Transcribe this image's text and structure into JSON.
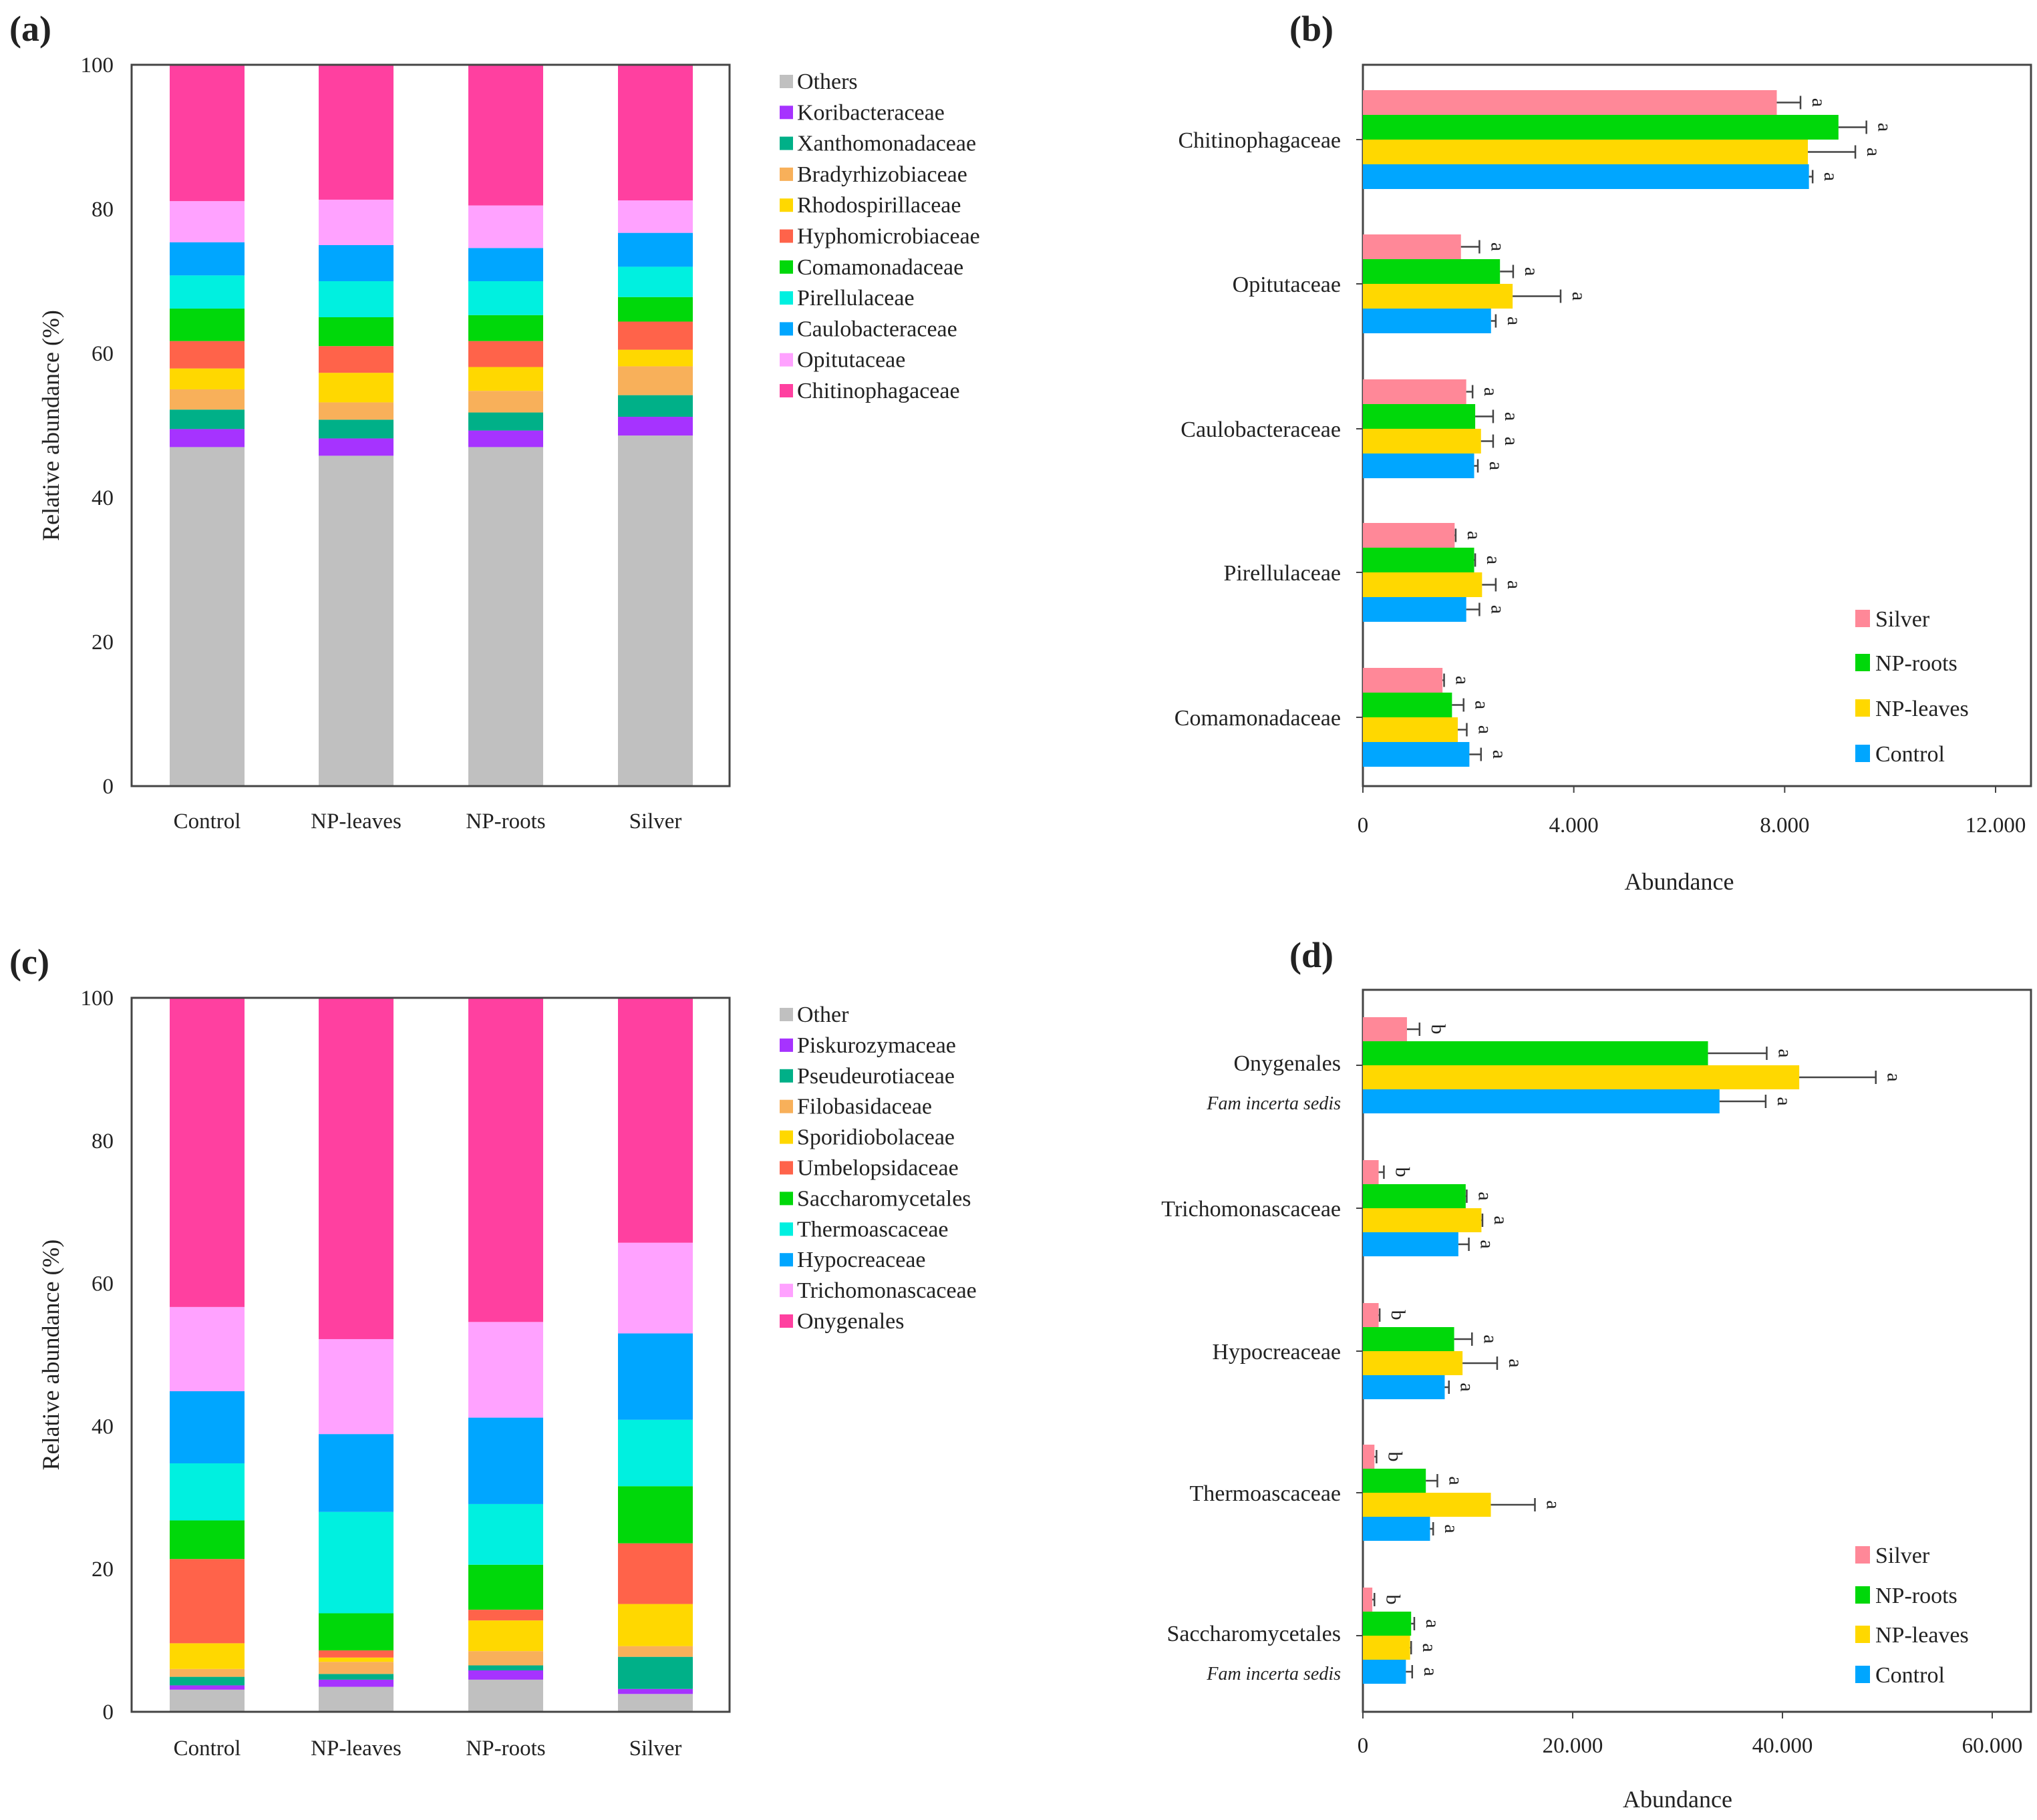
{
  "chart_data": [
    {
      "panel": "(a)",
      "type": "bar",
      "stacked": true,
      "categories": [
        "Control",
        "NP-leaves",
        "NP-roots",
        "Silver"
      ],
      "ylabel": "Relative abundance (%)",
      "ylim": [
        0,
        100
      ],
      "yticks": [
        "0",
        "20",
        "40",
        "60",
        "80",
        "100"
      ],
      "legend_position": "right",
      "series": [
        {
          "name": "Others",
          "color": "#c0c0c0",
          "values": [
            47.0,
            45.8,
            47.0,
            48.6
          ]
        },
        {
          "name": "Koribacteraceae",
          "color": "#a633ff",
          "values": [
            2.5,
            2.4,
            2.3,
            2.6
          ]
        },
        {
          "name": "Xanthomonadaceae",
          "color": "#00b088",
          "values": [
            2.7,
            2.6,
            2.5,
            3.0
          ]
        },
        {
          "name": "Bradyrhizobiaceae",
          "color": "#f8b05a",
          "values": [
            2.8,
            2.4,
            3.0,
            4.0
          ]
        },
        {
          "name": "Rhodospirillaceae",
          "color": "#ffd800",
          "values": [
            2.9,
            4.1,
            3.3,
            2.3
          ]
        },
        {
          "name": "Hyphomicrobiaceae",
          "color": "#ff634a",
          "values": [
            3.8,
            3.7,
            3.6,
            3.9
          ]
        },
        {
          "name": "Comamonadaceae",
          "color": "#00d80a",
          "values": [
            4.5,
            4.0,
            3.6,
            3.4
          ]
        },
        {
          "name": "Pirellulaceae",
          "color": "#00f0e0",
          "values": [
            4.6,
            5.0,
            4.7,
            4.2
          ]
        },
        {
          "name": "Caulobacteraceae",
          "color": "#00a6ff",
          "values": [
            4.6,
            5.0,
            4.6,
            4.7
          ]
        },
        {
          "name": "Opitutaceae",
          "color": "#ffa2ff",
          "values": [
            5.7,
            6.3,
            5.9,
            4.5
          ]
        },
        {
          "name": "Chitinophagaceae",
          "color": "#ff40a0",
          "values": [
            18.9,
            18.7,
            19.5,
            18.8
          ]
        }
      ]
    },
    {
      "panel": "(b)",
      "type": "bar",
      "orientation": "horizontal",
      "categories": [
        {
          "label": "Chitinophagaceae"
        },
        {
          "label": "Opitutaceae"
        },
        {
          "label": "Caulobacteraceae"
        },
        {
          "label": "Pirellulaceae"
        },
        {
          "label": "Comamonadaceae"
        }
      ],
      "xlabel": "Abundance",
      "xlim": [
        0,
        12000
      ],
      "xticks": [
        {
          "value": 0,
          "label": "0"
        },
        {
          "value": 4000,
          "label": "4.000"
        },
        {
          "value": 8000,
          "label": "8.000"
        },
        {
          "value": 12000,
          "label": "12.000"
        }
      ],
      "legend_position": "bottom-right",
      "series": [
        {
          "name": "Silver",
          "color": "#ff8898",
          "values": [
            7850,
            1860,
            1960,
            1740,
            1510
          ],
          "errors": [
            450,
            350,
            120,
            20,
            30
          ],
          "letters": [
            "a",
            "a",
            "a",
            "a",
            "a"
          ]
        },
        {
          "name": "NP-roots",
          "color": "#00d80a",
          "values": [
            9020,
            2600,
            2130,
            2110,
            1690
          ],
          "errors": [
            530,
            250,
            340,
            20,
            220
          ],
          "letters": [
            "a",
            "a",
            "a",
            "a",
            "a"
          ]
        },
        {
          "name": "NP-leaves",
          "color": "#ffd800",
          "values": [
            8440,
            2840,
            2240,
            2260,
            1800
          ],
          "errors": [
            900,
            910,
            230,
            260,
            170
          ],
          "letters": [
            "a",
            "a",
            "a",
            "a",
            "a"
          ]
        },
        {
          "name": "Control",
          "color": "#00a6ff",
          "values": [
            8460,
            2430,
            2110,
            1960,
            2020
          ],
          "errors": [
            70,
            90,
            70,
            250,
            220
          ],
          "letters": [
            "a",
            "a",
            "a",
            "a",
            "a"
          ]
        }
      ]
    },
    {
      "panel": "(c)",
      "type": "bar",
      "stacked": true,
      "categories": [
        "Control",
        "NP-leaves",
        "NP-roots",
        "Silver"
      ],
      "ylabel": "Relative abundance (%)",
      "ylim": [
        0,
        100
      ],
      "yticks": [
        "0",
        "20",
        "40",
        "60",
        "80",
        "100"
      ],
      "legend_position": "right",
      "series": [
        {
          "name": "Other",
          "color": "#c0c0c0",
          "values": [
            3.1,
            3.5,
            4.5,
            2.5
          ]
        },
        {
          "name": "Piskurozymaceae",
          "color": "#a633ff",
          "values": [
            0.6,
            1.0,
            1.3,
            0.7
          ]
        },
        {
          "name": "Pseudeurotiaceae",
          "color": "#00b088",
          "values": [
            1.2,
            0.8,
            0.7,
            4.5
          ]
        },
        {
          "name": "Filobasidaceae",
          "color": "#f8b05a",
          "values": [
            1.1,
            1.7,
            2.0,
            1.5
          ]
        },
        {
          "name": "Sporidiobolaceae",
          "color": "#ffd800",
          "values": [
            3.6,
            0.6,
            4.3,
            5.9
          ]
        },
        {
          "name": "Umbelopsidaceae",
          "color": "#ff634a",
          "values": [
            11.8,
            1.0,
            1.5,
            8.5
          ]
        },
        {
          "name": "Saccharomycetales",
          "color": "#00d80a",
          "values": [
            5.4,
            5.2,
            6.3,
            8.0
          ]
        },
        {
          "name": "Thermoascaceae",
          "color": "#00f0e0",
          "values": [
            8.0,
            14.2,
            8.5,
            9.3
          ]
        },
        {
          "name": "Hypocreaceae",
          "color": "#00a6ff",
          "values": [
            10.1,
            10.9,
            12.1,
            12.1
          ]
        },
        {
          "name": "Trichomonascaceae",
          "color": "#ffa2ff",
          "values": [
            11.8,
            13.3,
            13.4,
            12.7
          ]
        },
        {
          "name": "Onygenales",
          "color": "#ff40a0",
          "values": [
            43.3,
            47.8,
            45.4,
            34.3
          ]
        }
      ]
    },
    {
      "panel": "(d)",
      "type": "bar",
      "orientation": "horizontal",
      "categories": [
        {
          "label": "Onygenales",
          "sublabel": "Fam incerta sedis"
        },
        {
          "label": "Trichomonascaceae"
        },
        {
          "label": "Hypocreaceae"
        },
        {
          "label": "Thermoascaceae"
        },
        {
          "label": "Saccharomycetales",
          "sublabel": "Fam incerta sedis"
        }
      ],
      "xlabel": "Abundance",
      "xlim": [
        0,
        60000
      ],
      "xticks": [
        {
          "value": 0,
          "label": "0"
        },
        {
          "value": 20000,
          "label": "20.000"
        },
        {
          "value": 40000,
          "label": "40.000"
        },
        {
          "value": 60000,
          "label": "60.000"
        }
      ],
      "legend_position": "bottom-right",
      "series": [
        {
          "name": "Silver",
          "color": "#ff8898",
          "values": [
            4200,
            1500,
            1500,
            1100,
            900
          ],
          "errors": [
            1200,
            500,
            100,
            200,
            200
          ],
          "letters": [
            "b",
            "b",
            "b",
            "b",
            "b"
          ]
        },
        {
          "name": "NP-roots",
          "color": "#00d80a",
          "values": [
            32900,
            9800,
            8700,
            6000,
            4600
          ],
          "errors": [
            5600,
            100,
            1700,
            1100,
            300
          ],
          "letters": [
            "a",
            "a",
            "a",
            "a",
            "a"
          ]
        },
        {
          "name": "NP-leaves",
          "color": "#ffd800",
          "values": [
            41600,
            11300,
            9500,
            12200,
            4500
          ],
          "errors": [
            7300,
            100,
            3300,
            4200,
            100
          ],
          "letters": [
            "a",
            "a",
            "a",
            "a",
            "a"
          ]
        },
        {
          "name": "Control",
          "color": "#00a6ff",
          "values": [
            34000,
            9100,
            7800,
            6400,
            4100
          ],
          "errors": [
            4400,
            1000,
            400,
            300,
            600
          ],
          "letters": [
            "a",
            "a",
            "a",
            "a",
            "a"
          ]
        }
      ]
    }
  ]
}
